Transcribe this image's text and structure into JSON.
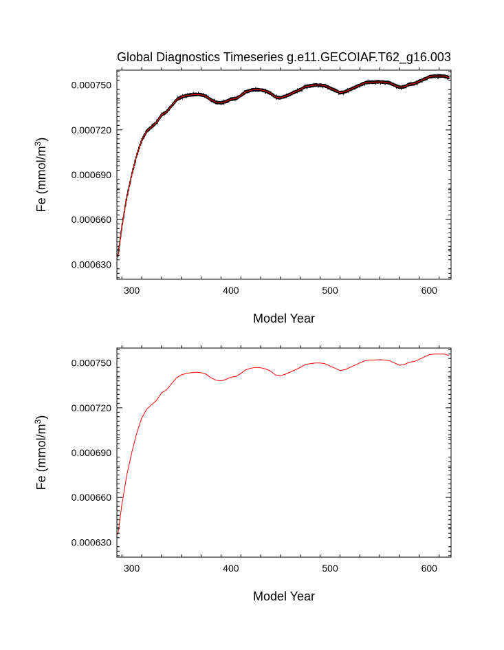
{
  "chart_data": [
    {
      "type": "line",
      "title": "Global Diagnostics Timeseries g.e11.GECOIAF.T62_g16.003",
      "xlabel": "Model Year",
      "ylabel": "Fe (mmol/m",
      "ylabel_sup": "3",
      "ylabel_close": ")",
      "xlim": [
        285,
        622
      ],
      "ylim": [
        0.00062,
        0.00076
      ],
      "xticks": [
        300,
        400,
        500,
        600
      ],
      "xtick_labels": [
        "300",
        "400",
        "500",
        "600"
      ],
      "yticks": [
        0.00063,
        0.00066,
        0.00069,
        0.00072,
        0.00075
      ],
      "ytick_labels": [
        "0.000630",
        "0.000660",
        "0.000690",
        "0.000720",
        "0.000750"
      ],
      "series": [
        {
          "name": "monthly",
          "color": "#000000",
          "noisy": true,
          "x": [
            286,
            290,
            295,
            300,
            305,
            310,
            315,
            320,
            325,
            330,
            335,
            340,
            345,
            350,
            355,
            360,
            365,
            370,
            375,
            380,
            385,
            390,
            395,
            400,
            405,
            410,
            415,
            420,
            425,
            430,
            435,
            440,
            445,
            450,
            455,
            460,
            465,
            470,
            475,
            480,
            485,
            490,
            495,
            500,
            505,
            510,
            515,
            520,
            525,
            530,
            535,
            540,
            545,
            550,
            555,
            560,
            565,
            570,
            575,
            580,
            585,
            590,
            595,
            600,
            605,
            610,
            615,
            620
          ],
          "y": [
            0.000635,
            0.000655,
            0.000675,
            0.00069,
            0.000703,
            0.000713,
            0.000719,
            0.000722,
            0.000725,
            0.00073,
            0.000732,
            0.000736,
            0.00074,
            0.000742,
            0.000743,
            0.0007435,
            0.0007438,
            0.0007435,
            0.0007425,
            0.00074,
            0.0007385,
            0.000738,
            0.000739,
            0.0007405,
            0.000741,
            0.000743,
            0.0007455,
            0.0007465,
            0.000747,
            0.0007468,
            0.000746,
            0.0007445,
            0.000742,
            0.0007415,
            0.0007425,
            0.000744,
            0.0007455,
            0.000747,
            0.000749,
            0.0007495,
            0.00075,
            0.00075,
            0.0007495,
            0.000748,
            0.0007465,
            0.000745,
            0.0007455,
            0.000747,
            0.0007485,
            0.00075,
            0.0007515,
            0.000752,
            0.000752,
            0.0007522,
            0.000752,
            0.0007515,
            0.00075,
            0.0007485,
            0.000749,
            0.0007505,
            0.000751,
            0.0007525,
            0.000754,
            0.0007555,
            0.000756,
            0.000756,
            0.000756,
            0.000755
          ]
        },
        {
          "name": "annual",
          "color": "#ff0000",
          "noisy": false,
          "x": [
            286,
            290,
            295,
            300,
            305,
            310,
            315,
            320,
            325,
            330,
            335,
            340,
            345,
            350,
            355,
            360,
            365,
            370,
            375,
            380,
            385,
            390,
            395,
            400,
            405,
            410,
            415,
            420,
            425,
            430,
            435,
            440,
            445,
            450,
            455,
            460,
            465,
            470,
            475,
            480,
            485,
            490,
            495,
            500,
            505,
            510,
            515,
            520,
            525,
            530,
            535,
            540,
            545,
            550,
            555,
            560,
            565,
            570,
            575,
            580,
            585,
            590,
            595,
            600,
            605,
            610,
            615,
            620
          ],
          "y": [
            0.000635,
            0.000655,
            0.000675,
            0.00069,
            0.000703,
            0.000713,
            0.000719,
            0.000722,
            0.000725,
            0.00073,
            0.000732,
            0.000736,
            0.00074,
            0.000742,
            0.000743,
            0.0007435,
            0.0007438,
            0.0007435,
            0.0007425,
            0.00074,
            0.0007385,
            0.000738,
            0.000739,
            0.0007405,
            0.000741,
            0.000743,
            0.0007455,
            0.0007465,
            0.000747,
            0.0007468,
            0.000746,
            0.0007445,
            0.000742,
            0.0007415,
            0.0007425,
            0.000744,
            0.0007455,
            0.000747,
            0.000749,
            0.0007495,
            0.00075,
            0.00075,
            0.0007495,
            0.000748,
            0.0007465,
            0.000745,
            0.0007455,
            0.000747,
            0.0007485,
            0.00075,
            0.0007515,
            0.000752,
            0.000752,
            0.0007522,
            0.000752,
            0.0007515,
            0.00075,
            0.0007485,
            0.000749,
            0.0007505,
            0.000751,
            0.0007525,
            0.000754,
            0.0007555,
            0.000756,
            0.000756,
            0.000756,
            0.000755
          ]
        }
      ]
    },
    {
      "type": "line",
      "title": "",
      "xlabel": "Model Year",
      "ylabel": "Fe (mmol/m",
      "ylabel_sup": "3",
      "ylabel_close": ")",
      "xlim": [
        285,
        622
      ],
      "ylim": [
        0.00062,
        0.00076
      ],
      "xticks": [
        300,
        400,
        500,
        600
      ],
      "xtick_labels": [
        "300",
        "400",
        "500",
        "600"
      ],
      "yticks": [
        0.00063,
        0.00066,
        0.00069,
        0.00072,
        0.00075
      ],
      "ytick_labels": [
        "0.000630",
        "0.000660",
        "0.000690",
        "0.000720",
        "0.000750"
      ],
      "series": [
        {
          "name": "annual",
          "color": "#ff0000",
          "noisy": false,
          "x": [
            286,
            290,
            295,
            300,
            305,
            310,
            315,
            320,
            325,
            330,
            335,
            340,
            345,
            350,
            355,
            360,
            365,
            370,
            375,
            380,
            385,
            390,
            395,
            400,
            405,
            410,
            415,
            420,
            425,
            430,
            435,
            440,
            445,
            450,
            455,
            460,
            465,
            470,
            475,
            480,
            485,
            490,
            495,
            500,
            505,
            510,
            515,
            520,
            525,
            530,
            535,
            540,
            545,
            550,
            555,
            560,
            565,
            570,
            575,
            580,
            585,
            590,
            595,
            600,
            605,
            610,
            615,
            620
          ],
          "y": [
            0.000635,
            0.000655,
            0.000675,
            0.00069,
            0.000703,
            0.000713,
            0.000719,
            0.000722,
            0.000725,
            0.00073,
            0.000732,
            0.000736,
            0.00074,
            0.000742,
            0.000743,
            0.0007435,
            0.0007438,
            0.0007435,
            0.0007425,
            0.00074,
            0.0007385,
            0.000738,
            0.000739,
            0.0007405,
            0.000741,
            0.000743,
            0.0007455,
            0.0007465,
            0.000747,
            0.0007468,
            0.000746,
            0.0007445,
            0.000742,
            0.0007415,
            0.0007425,
            0.000744,
            0.0007455,
            0.000747,
            0.000749,
            0.0007495,
            0.00075,
            0.00075,
            0.0007495,
            0.000748,
            0.0007465,
            0.000745,
            0.0007455,
            0.000747,
            0.0007485,
            0.00075,
            0.0007515,
            0.000752,
            0.000752,
            0.0007522,
            0.000752,
            0.0007515,
            0.00075,
            0.0007485,
            0.000749,
            0.0007505,
            0.000751,
            0.0007525,
            0.000754,
            0.0007555,
            0.000756,
            0.000756,
            0.000756,
            0.000755
          ]
        }
      ]
    }
  ]
}
